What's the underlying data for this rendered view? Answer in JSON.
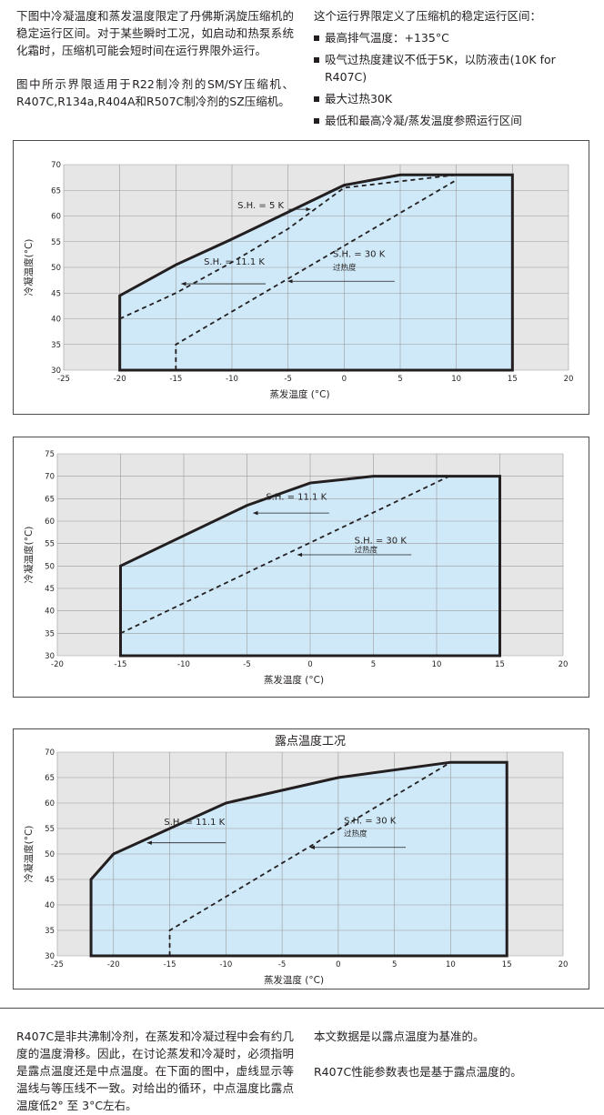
{
  "intro": {
    "left_p1": "下图中冷凝温度和蒸发温度限定了丹佛斯涡旋压缩机的稳定运行区间。对于某些瞬时工况，如启动和热泵系统化霜时，压缩机可能会短时间在运行界限外运行。",
    "left_p2": "图中所示界限适用于R22制冷剂的SM/SY压缩机、R407C,R134a,R404A和R507C制冷剂的SZ压缩机。",
    "right_lead": "这个运行界限定义了压缩机的稳定运行区间：",
    "bullets": [
      "最高排气温度：+135°C",
      "吸气过热度建议不低于5K，以防液击(10K for R407C)",
      "最大过热30K",
      "最低和最高冷凝/蒸发温度参照运行区间"
    ]
  },
  "colors": {
    "envelope_fill": "#cfe9f8",
    "plot_bg": "#e6e6e6",
    "outline": "#231f20"
  },
  "chart_data": [
    {
      "type": "area",
      "title": "",
      "xlabel": "蒸发温度 (°C)",
      "ylabel": "冷凝温度(°C)",
      "xlim": [
        -25,
        20
      ],
      "ylim": [
        30,
        70
      ],
      "xticks": [
        -25,
        -20,
        -15,
        -10,
        -5,
        0,
        5,
        10,
        15,
        20
      ],
      "yticks": [
        30,
        35,
        40,
        45,
        50,
        55,
        60,
        65,
        70
      ],
      "grid": true,
      "envelope": [
        [
          -20,
          30
        ],
        [
          -20,
          44.5
        ],
        [
          -15,
          50.5
        ],
        [
          -10,
          55.5
        ],
        [
          0,
          66
        ],
        [
          5,
          68
        ],
        [
          15,
          68
        ],
        [
          15,
          30
        ]
      ],
      "dashed_lines": [
        [
          [
            -20,
            40
          ],
          [
            -15,
            45
          ],
          [
            -10,
            51
          ],
          [
            -5,
            57.5
          ],
          [
            0,
            65.5
          ],
          [
            10,
            68
          ]
        ],
        [
          [
            -15,
            30
          ],
          [
            -15,
            35
          ],
          [
            10,
            67
          ]
        ]
      ],
      "annotations": [
        {
          "text": "S.H. = 5 K",
          "x": -9.5,
          "y": 61.5,
          "arrow_to": [
            -3,
            61.3
          ]
        },
        {
          "text": "S.H. = 11.1 K",
          "x": -12.5,
          "y": 50.5,
          "arrow_from": [
            -7,
            46.8
          ],
          "arrow_to": [
            -14.5,
            46.8
          ]
        },
        {
          "text": "S.H. = 30 K",
          "x": -1,
          "y": 52,
          "arrow_from": [
            4.5,
            47.3
          ],
          "arrow_to": [
            -5,
            47.3
          ]
        },
        {
          "text": "过热度",
          "x": -1,
          "y": 49.5
        }
      ]
    },
    {
      "type": "area",
      "title": "",
      "xlabel": "蒸发温度 (°C)",
      "ylabel": "冷凝温度(°C)",
      "xlim": [
        -20,
        20
      ],
      "ylim": [
        30,
        75
      ],
      "xticks": [
        -20,
        -15,
        -10,
        -5,
        0,
        5,
        10,
        15,
        20
      ],
      "yticks": [
        30,
        35,
        40,
        45,
        50,
        55,
        60,
        65,
        70,
        75
      ],
      "grid": true,
      "envelope": [
        [
          -15,
          30
        ],
        [
          -15,
          50
        ],
        [
          -5,
          63.5
        ],
        [
          0,
          68.5
        ],
        [
          5,
          70
        ],
        [
          15,
          70
        ],
        [
          15,
          30
        ]
      ],
      "dashed_lines": [
        [
          [
            -15,
            35
          ],
          [
            11,
            70
          ]
        ]
      ],
      "annotations": [
        {
          "text": "S.H. = 11.1 K",
          "x": -3.5,
          "y": 64.8,
          "arrow_from": [
            1.5,
            61.8
          ],
          "arrow_to": [
            -4.5,
            61.8
          ]
        },
        {
          "text": "S.H. = 30 K",
          "x": 3.5,
          "y": 55,
          "arrow_from": [
            8,
            52.5
          ],
          "arrow_to": [
            -1,
            52.5
          ]
        },
        {
          "text": "过热度",
          "x": 3.5,
          "y": 53
        }
      ]
    },
    {
      "type": "area",
      "title": "露点温度工况",
      "xlabel": "蒸发温度 (°C)",
      "ylabel": "冷凝温度(°C)",
      "xlim": [
        -25,
        20
      ],
      "ylim": [
        30,
        70
      ],
      "xticks": [
        -25,
        -20,
        -15,
        -10,
        -5,
        0,
        5,
        10,
        15,
        20
      ],
      "yticks": [
        30,
        35,
        40,
        45,
        50,
        55,
        60,
        65,
        70
      ],
      "grid": true,
      "envelope": [
        [
          -22,
          30
        ],
        [
          -22,
          45
        ],
        [
          -20,
          50
        ],
        [
          -10,
          60
        ],
        [
          0,
          65
        ],
        [
          10,
          68
        ],
        [
          15,
          68
        ],
        [
          15,
          30
        ]
      ],
      "dashed_lines": [
        [
          [
            -15,
            30
          ],
          [
            -15,
            35
          ],
          [
            10,
            68
          ]
        ]
      ],
      "annotations": [
        {
          "text": "S.H. = 11.1 K",
          "x": -15.5,
          "y": 55.7,
          "arrow_from": [
            -10,
            52.2
          ],
          "arrow_to": [
            -17,
            52.2
          ]
        },
        {
          "text": "S.H. = 30 K",
          "x": 0.5,
          "y": 56,
          "arrow_from": [
            6,
            51.3
          ],
          "arrow_to": [
            -2.5,
            51.3
          ]
        },
        {
          "text": "过热度",
          "x": 0.5,
          "y": 53.5
        }
      ]
    }
  ],
  "footer": {
    "left": "R407C是非共沸制冷剂，在蒸发和冷凝过程中会有约几度的温度滑移。因此，在讨论蒸发和冷凝时，必须指明是露点温度还是中点温度。在下面的图中，虚线显示等温线与等压线不一致。对给出的循环，中点温度比露点温度低2° 至 3°C左右。",
    "right_p1": "本文数据是以露点温度为基准的。",
    "right_p2": "R407C性能参数表也是基于露点温度的。"
  }
}
